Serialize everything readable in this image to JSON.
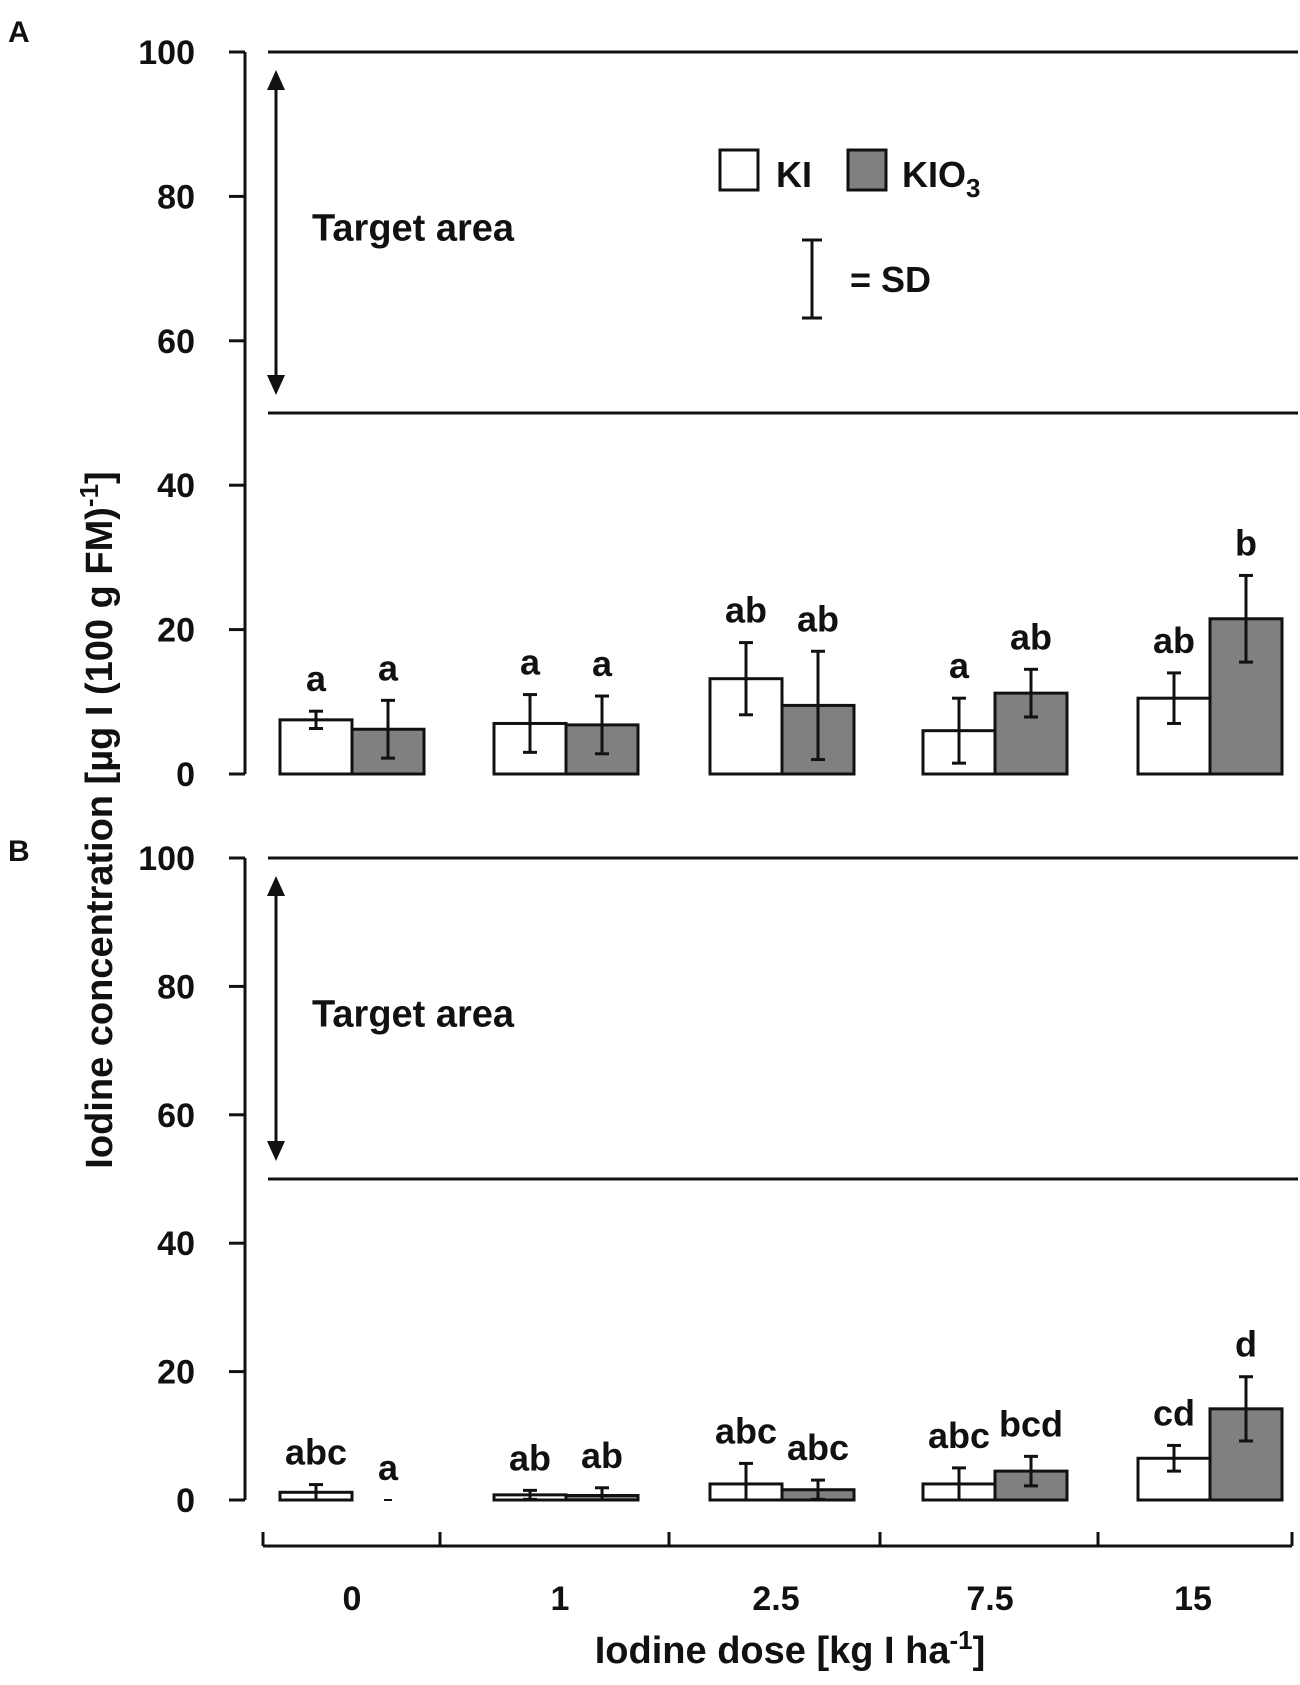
{
  "chart_data": {
    "type": "bar",
    "ylabel": "Iodine concentration [µg I (100 g FM)",
    "ylabel_sup": "-1",
    "ylabel_close": "]",
    "xlabel": "Iodine dose [kg I ha",
    "xlabel_sup": "-1",
    "xlabel_close": "]",
    "categories": [
      "0",
      "1",
      "2.5",
      "7.5",
      "15"
    ],
    "ylim": [
      0,
      100
    ],
    "yticks": [
      "0",
      "20",
      "40",
      "60",
      "80",
      "100"
    ],
    "target_area": {
      "label": "Target  area",
      "lower": 50,
      "upper": 100
    },
    "legend": {
      "ki_label": "KI",
      "kio3_label": "KIO",
      "kio3_sub": "3",
      "sd_label": "= SD"
    },
    "colors": {
      "KI": "#ffffff",
      "KIO3": "#808080",
      "outline": "#111111"
    },
    "panels": [
      {
        "label": "A",
        "series": [
          {
            "name": "KI",
            "values": [
              7.5,
              7,
              13.2,
              6,
              10.5
            ],
            "sd": [
              1.2,
              4,
              5,
              4.5,
              3.5
            ],
            "sig": [
              "a",
              "a",
              "ab",
              "a",
              "ab"
            ]
          },
          {
            "name": "KIO3",
            "values": [
              6.2,
              6.8,
              9.5,
              11.2,
              21.5
            ],
            "sd": [
              4,
              4,
              7.5,
              3.3,
              6
            ],
            "sig": [
              "a",
              "a",
              "ab",
              "ab",
              "b"
            ]
          }
        ]
      },
      {
        "label": "B",
        "series": [
          {
            "name": "KI",
            "values": [
              1.2,
              0.8,
              2.5,
              2.5,
              6.5
            ],
            "sd": [
              1.2,
              0.7,
              3.2,
              2.5,
              2
            ],
            "sig": [
              "abc",
              "ab",
              "abc",
              "abc",
              "cd"
            ]
          },
          {
            "name": "KIO3",
            "values": [
              0,
              0.7,
              1.6,
              4.5,
              14.2
            ],
            "sd": [
              0,
              1.2,
              1.5,
              2.3,
              5
            ],
            "sig": [
              "a",
              "ab",
              "abc",
              "bcd",
              "d"
            ]
          }
        ]
      }
    ]
  }
}
